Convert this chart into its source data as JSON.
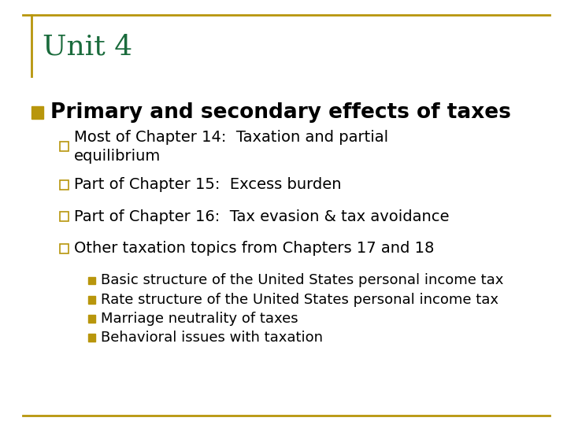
{
  "background_color": "#ffffff",
  "border_color": "#b8960c",
  "title": "Unit 4",
  "title_color": "#1a6b3c",
  "title_fontsize": 26,
  "main_bullet_color": "#b8960c",
  "main_bullet_text": "Primary and secondary effects of taxes",
  "main_bullet_fontsize": 19,
  "sub_bullets": [
    "Most of Chapter 14:  Taxation and partial\nequilibrium",
    "Part of Chapter 15:  Excess burden",
    "Part of Chapter 16:  Tax evasion & tax avoidance",
    "Other taxation topics from Chapters 17 and 18"
  ],
  "sub_bullet_fontsize": 14,
  "sub_bullet_color": "#b8960c",
  "sub_sub_bullets": [
    "Basic structure of the United States personal income tax",
    "Rate structure of the United States personal income tax",
    "Marriage neutrality of taxes",
    "Behavioral issues with taxation"
  ],
  "sub_sub_bullet_fontsize": 13,
  "sub_sub_bullet_color": "#b8960c"
}
